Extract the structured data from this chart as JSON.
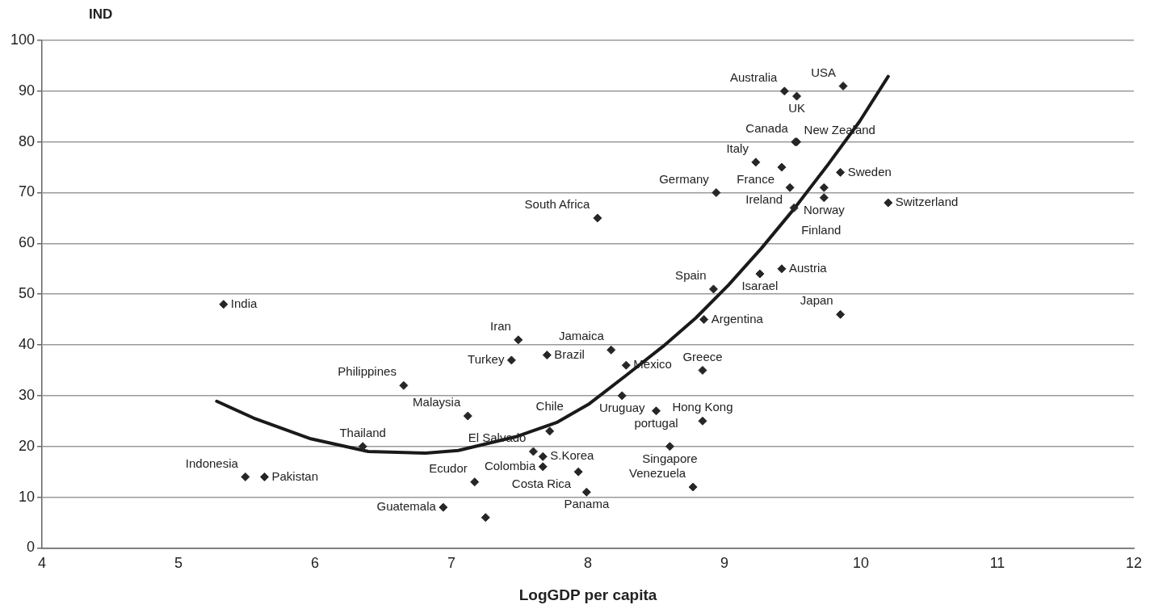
{
  "chart_data": {
    "type": "scatter",
    "ylabel": "IND",
    "xlabel": "LogGDP per capita",
    "xlim": [
      4,
      12
    ],
    "xticks": [
      4,
      5,
      6,
      7,
      8,
      9,
      10,
      11,
      12
    ],
    "ylim": [
      0,
      100
    ],
    "yticks": [
      0,
      10,
      20,
      30,
      40,
      50,
      60,
      70,
      80,
      90,
      100
    ],
    "grid": "y",
    "legend": false,
    "marker": "diamond",
    "series": [
      {
        "color": "#262626",
        "x": [
          5.33,
          5.49,
          5.63,
          6.65,
          6.35,
          7.12,
          7.17,
          6.94,
          7.25,
          7.49,
          7.44,
          7.7,
          8.17,
          8.28,
          8.84,
          8.25,
          8.5,
          8.84,
          8.6,
          8.77,
          7.99,
          7.93,
          7.72,
          7.6,
          7.67,
          7.67,
          9.87,
          9.44,
          9.53,
          9.52,
          9.53,
          9.23,
          9.42,
          9.48,
          9.85,
          9.73,
          9.73,
          8.94,
          10.2,
          9.51,
          9.42,
          9.26,
          8.92,
          8.07,
          9.85,
          8.85
        ],
        "values": [
          48,
          14,
          14,
          32,
          20,
          26,
          13,
          8,
          6,
          41,
          37,
          38,
          39,
          36,
          35,
          30,
          27,
          25,
          20,
          12,
          11,
          15,
          23,
          19,
          18,
          16,
          91,
          90,
          89,
          80,
          80,
          76,
          75,
          71,
          74,
          71,
          69,
          70,
          68,
          67,
          55,
          54,
          51,
          65,
          46,
          45
        ],
        "value_labels": [
          "India",
          "Indonesia",
          "Pakistan",
          "Philippines",
          "Thailand",
          "Malaysia",
          "Ecudor",
          "Guatemala",
          null,
          "Iran",
          "Turkey",
          "Brazil",
          "Jamaica",
          "Mexico",
          "Greece",
          "Uruguay",
          "portugal",
          "Hong Kong",
          "Singapore",
          "Venezuela",
          "Panama",
          "Costa Rica",
          "Chile",
          "El Salvado",
          "S.Korea",
          "Colombia",
          "USA",
          "Australia",
          "UK",
          "Canada",
          "New Zealand",
          "Italy",
          "France",
          "Ireland",
          "Sweden",
          null,
          "Norway",
          "Germany",
          "Switzerland",
          "Finland",
          "Austria",
          "Isarael",
          "Spain",
          "South Africa",
          "Japan",
          "Argentina"
        ]
      },
      {
        "type": "line",
        "color": "#1a1a1a",
        "marker": "none",
        "x": [
          5.28,
          5.55,
          5.97,
          6.39,
          6.81,
          7.05,
          7.47,
          7.77,
          8.01,
          8.28,
          8.55,
          8.79,
          9.03,
          9.27,
          9.51,
          9.75,
          9.99,
          10.2
        ],
        "values": [
          28.9,
          25.6,
          21.5,
          19.0,
          18.7,
          19.2,
          21.9,
          24.7,
          28.4,
          34.0,
          39.7,
          45.3,
          51.8,
          59.0,
          66.8,
          75.2,
          84.0,
          92.9
        ]
      }
    ]
  }
}
